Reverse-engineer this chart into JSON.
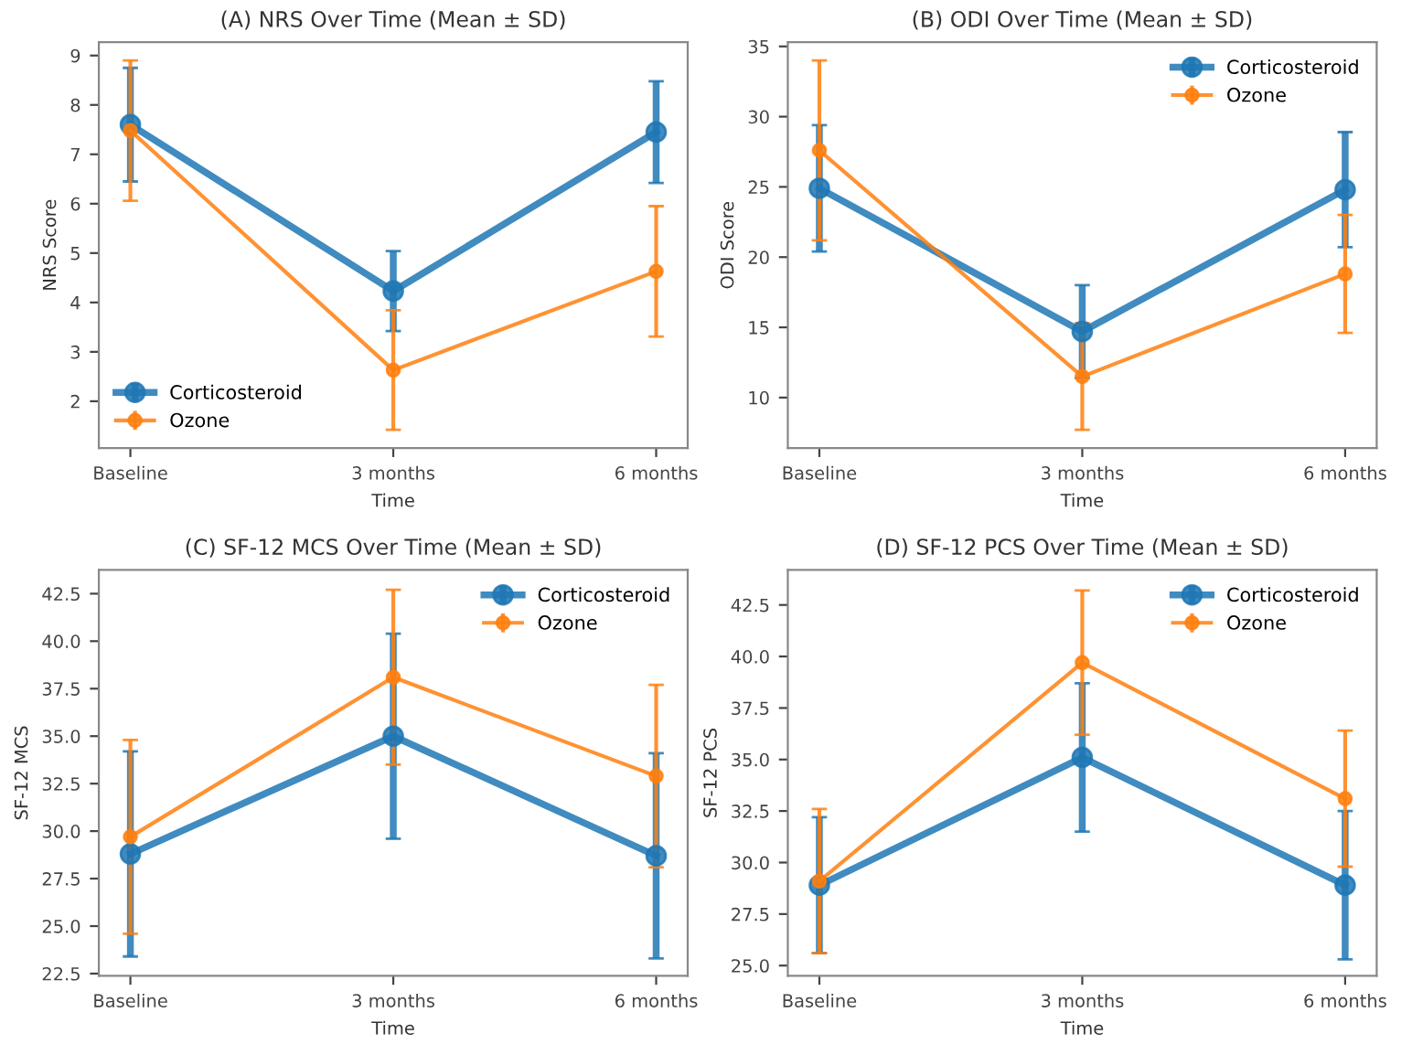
{
  "chart_data": [
    {
      "type": "line",
      "title": "(A) NRS Over Time (Mean ± SD)",
      "xlabel": "Time",
      "ylabel": "NRS Score",
      "categories": [
        "Baseline",
        "3 months",
        "6 months"
      ],
      "ylim": [
        1.05,
        9.27
      ],
      "yticks": [
        2,
        3,
        4,
        5,
        6,
        7,
        8,
        9
      ],
      "marker": "circle",
      "line_style": "solid",
      "grid": false,
      "legend": "bottom left",
      "series": [
        {
          "name": "Corticosteroid",
          "color": "#1f77b4",
          "values": [
            7.6,
            4.23,
            7.45
          ],
          "errors": [
            1.15,
            0.81,
            1.03
          ]
        },
        {
          "name": "Ozone",
          "color": "#ff7f0e",
          "values": [
            7.48,
            2.63,
            4.63
          ],
          "errors": [
            1.42,
            1.21,
            1.32
          ]
        }
      ]
    },
    {
      "type": "line",
      "title": "(B) ODI Over Time (Mean ± SD)",
      "xlabel": "Time",
      "ylabel": "ODI Score",
      "categories": [
        "Baseline",
        "3 months",
        "6 months"
      ],
      "ylim": [
        6.4,
        35.3
      ],
      "yticks": [
        10,
        15,
        20,
        25,
        30,
        35
      ],
      "marker": "circle",
      "line_style": "solid",
      "grid": false,
      "legend": "top right",
      "series": [
        {
          "name": "Corticosteroid",
          "color": "#1f77b4",
          "values": [
            24.9,
            14.7,
            24.8
          ],
          "errors": [
            4.5,
            3.3,
            4.1
          ]
        },
        {
          "name": "Ozone",
          "color": "#ff7f0e",
          "values": [
            27.6,
            11.5,
            18.8
          ],
          "errors": [
            6.4,
            3.8,
            4.2
          ]
        }
      ]
    },
    {
      "type": "line",
      "title": "(C) SF-12 MCS Over Time (Mean ± SD)",
      "xlabel": "Time",
      "ylabel": "SF-12 MCS",
      "categories": [
        "Baseline",
        "3 months",
        "6 months"
      ],
      "ylim": [
        22.38,
        43.75
      ],
      "yticks": [
        {
          "value": 22.5,
          "label": "22.5"
        },
        {
          "value": 25,
          "label": "25.0"
        },
        {
          "value": 27.5,
          "label": "27.5"
        },
        {
          "value": 30,
          "label": "30.0"
        },
        {
          "value": 32.5,
          "label": "32.5"
        },
        {
          "value": 35,
          "label": "35.0"
        },
        {
          "value": 37.5,
          "label": "37.5"
        },
        {
          "value": 40,
          "label": "40.0"
        },
        {
          "value": 42.5,
          "label": "42.5"
        }
      ],
      "marker": "circle",
      "line_style": "solid",
      "grid": false,
      "legend": "top right",
      "series": [
        {
          "name": "Corticosteroid",
          "color": "#1f77b4",
          "values": [
            28.8,
            35.0,
            28.7
          ],
          "errors": [
            5.4,
            5.4,
            5.4
          ]
        },
        {
          "name": "Ozone",
          "color": "#ff7f0e",
          "values": [
            29.7,
            38.1,
            32.9
          ],
          "errors": [
            5.1,
            4.6,
            4.8
          ]
        }
      ]
    },
    {
      "type": "line",
      "title": "(D) SF-12 PCS Over Time (Mean ± SD)",
      "xlabel": "Time",
      "ylabel": "SF-12 PCS",
      "categories": [
        "Baseline",
        "3 months",
        "6 months"
      ],
      "ylim": [
        24.5,
        44.2
      ],
      "yticks": [
        {
          "value": 25,
          "label": "25.0"
        },
        {
          "value": 27.5,
          "label": "27.5"
        },
        {
          "value": 30,
          "label": "30.0"
        },
        {
          "value": 32.5,
          "label": "32.5"
        },
        {
          "value": 35,
          "label": "35.0"
        },
        {
          "value": 37.5,
          "label": "37.5"
        },
        {
          "value": 40,
          "label": "40.0"
        },
        {
          "value": 42.5,
          "label": "42.5"
        }
      ],
      "marker": "circle",
      "line_style": "solid",
      "grid": false,
      "legend": "top right",
      "series": [
        {
          "name": "Corticosteroid",
          "color": "#1f77b4",
          "values": [
            28.9,
            35.1,
            28.9
          ],
          "errors": [
            3.3,
            3.6,
            3.6
          ]
        },
        {
          "name": "Ozone",
          "color": "#ff7f0e",
          "values": [
            29.1,
            39.7,
            33.1
          ],
          "errors": [
            3.5,
            3.5,
            3.3
          ]
        }
      ]
    }
  ]
}
